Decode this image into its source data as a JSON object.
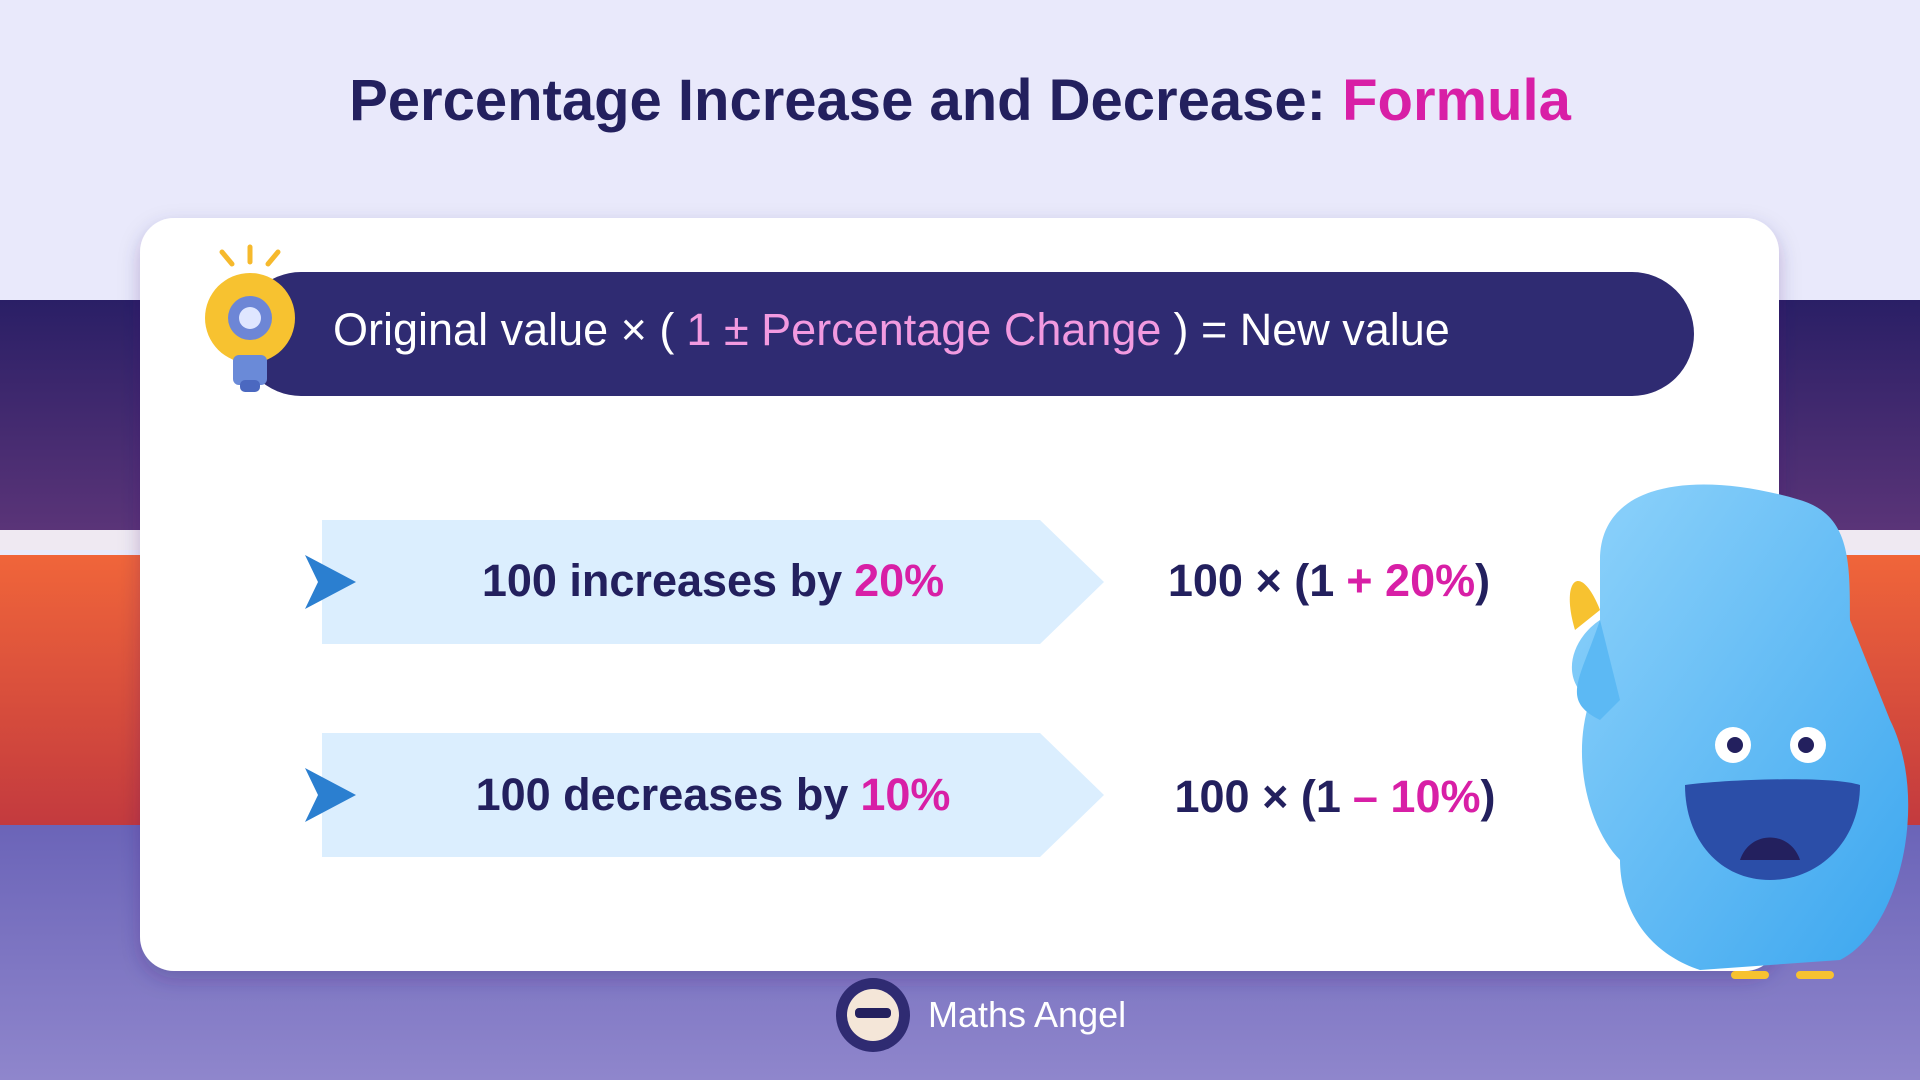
{
  "header": {
    "title": "Percentage Increase and Decrease: ",
    "highlight": "Formula"
  },
  "formula": {
    "before": "Original value × (",
    "middle": "1 ± Percentage Change",
    "after": ") = New value"
  },
  "examples": [
    {
      "label": "100 increases by",
      "amount": "20%",
      "expression": {
        "start": "100 × (1",
        "operation": "+ 20%",
        "end": ")"
      }
    },
    {
      "label": "100 decreases by",
      "amount": "10%",
      "expression": {
        "start": "100 × (1",
        "operation": "– 10%",
        "end": ")"
      }
    }
  ],
  "footer": {
    "brand": "Maths Angel"
  }
}
